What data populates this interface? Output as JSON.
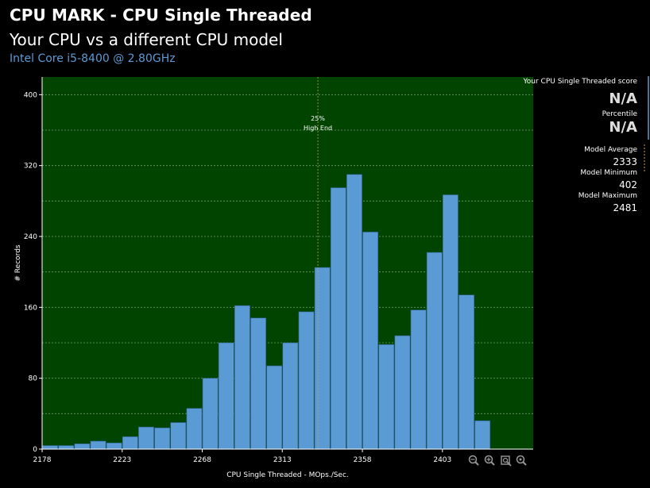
{
  "header": {
    "title": "CPU MARK - CPU Single Threaded",
    "subtitle": "Your CPU vs a different CPU model",
    "cpu_name": "Intel Core i5-8400 @ 2.80GHz"
  },
  "sidebar": {
    "score_label": "Your CPU Single Threaded score",
    "score_value": "N/A",
    "percentile_label": "Percentile",
    "percentile_value": "N/A",
    "avg_label": "Model Average",
    "avg_value": "2333",
    "min_label": "Model Minimum",
    "min_value": "402",
    "max_label": "Model Maximum",
    "max_value": "2481"
  },
  "colors": {
    "plot_bg": "#004400",
    "bar_fill": "#5b9bd5",
    "bar_stroke": "#2f5f8f",
    "grid": "#6f9a6f",
    "marker": "#c8a040",
    "accent": "#5b9bd5"
  },
  "chart_data": {
    "type": "bar",
    "title": "CPU MARK - CPU Single Threaded",
    "xlabel": "CPU Single Threaded - MOps./Sec.",
    "ylabel": "# Records",
    "xlim": [
      2178,
      2454
    ],
    "ylim": [
      0,
      420
    ],
    "bin_start": 2178,
    "bin_width": 9,
    "x_ticks": [
      2178,
      2223,
      2268,
      2313,
      2358,
      2403
    ],
    "y_ticks": [
      0,
      80,
      160,
      240,
      320,
      400
    ],
    "values": [
      4,
      4,
      6,
      9,
      7,
      14,
      25,
      24,
      30,
      46,
      80,
      120,
      162,
      148,
      94,
      120,
      155,
      205,
      295,
      310,
      245,
      118,
      128,
      157,
      222,
      287,
      174,
      32
    ],
    "grid": true,
    "marker_line": {
      "x": 2333,
      "label_top": "25%",
      "label_bottom": "High End"
    }
  },
  "toolbar": {
    "zoom_out_icon": "zoom-out-icon",
    "zoom_in_icon": "zoom-in-icon",
    "fit_icon": "fit-icon",
    "reset_icon": "reset-zoom-icon"
  }
}
